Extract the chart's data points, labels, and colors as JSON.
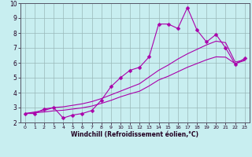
{
  "xlabel": "Windchill (Refroidissement éolien,°C)",
  "x_data": [
    0,
    1,
    2,
    3,
    4,
    5,
    6,
    7,
    8,
    9,
    10,
    11,
    12,
    13,
    14,
    15,
    16,
    17,
    18,
    19,
    20,
    21,
    22,
    23
  ],
  "zigzag_y": [
    2.6,
    2.6,
    2.9,
    3.0,
    2.3,
    2.5,
    2.6,
    2.8,
    3.5,
    4.4,
    5.0,
    5.5,
    5.7,
    6.4,
    8.6,
    8.6,
    8.3,
    9.7,
    8.2,
    7.4,
    7.9,
    7.0,
    5.9,
    6.3
  ],
  "line2_y": [
    2.6,
    2.7,
    2.8,
    3.0,
    3.05,
    3.15,
    3.25,
    3.4,
    3.6,
    3.85,
    4.1,
    4.35,
    4.6,
    5.05,
    5.5,
    5.85,
    6.25,
    6.6,
    6.9,
    7.2,
    7.45,
    7.35,
    6.05,
    6.2
  ],
  "line3_y": [
    2.6,
    2.65,
    2.7,
    2.78,
    2.82,
    2.9,
    2.98,
    3.1,
    3.28,
    3.48,
    3.72,
    3.92,
    4.1,
    4.45,
    4.85,
    5.1,
    5.4,
    5.7,
    5.95,
    6.2,
    6.4,
    6.38,
    5.95,
    6.15
  ],
  "line_color": "#aa00aa",
  "bg_color": "#c8eef0",
  "grid_color": "#9ab8b8",
  "ylim": [
    2.0,
    10.0
  ],
  "xlim": [
    -0.5,
    23.5
  ],
  "yticks": [
    2,
    3,
    4,
    5,
    6,
    7,
    8,
    9,
    10
  ],
  "xticks": [
    0,
    1,
    2,
    3,
    4,
    5,
    6,
    7,
    8,
    9,
    10,
    11,
    12,
    13,
    14,
    15,
    16,
    17,
    18,
    19,
    20,
    21,
    22,
    23
  ]
}
